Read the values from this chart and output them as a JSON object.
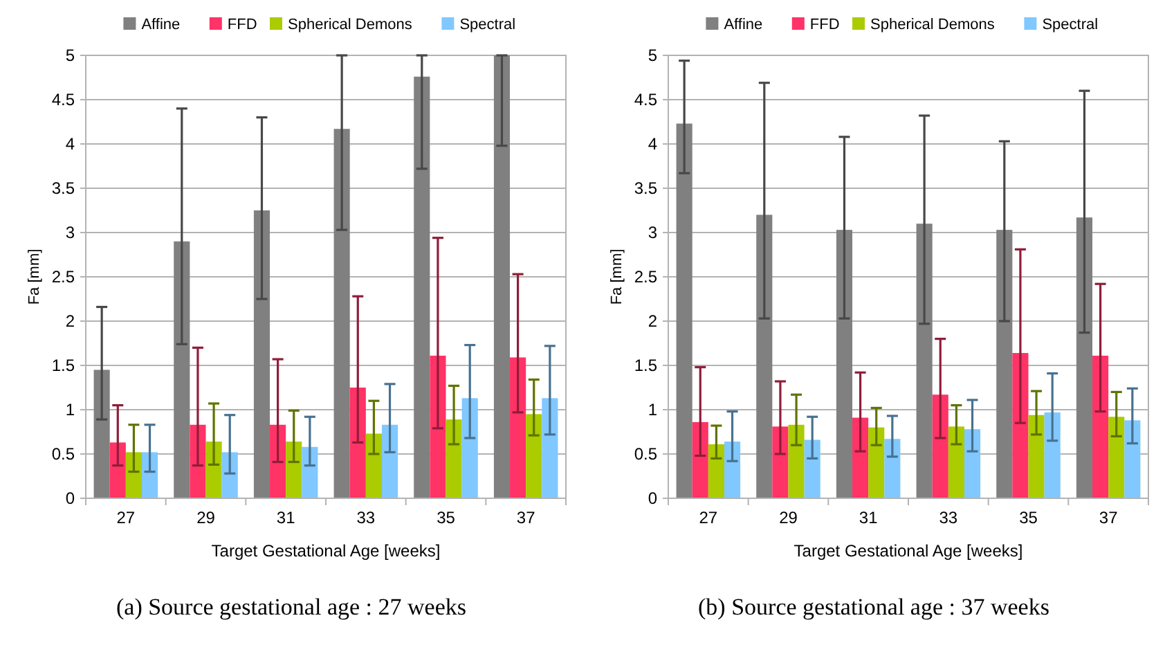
{
  "chart_data": [
    {
      "type": "bar",
      "title": "(a) Source gestational age : 27 weeks",
      "xlabel": "Target Gestational Age [weeks]",
      "ylabel": "Fa [mm]",
      "categories": [
        "27",
        "29",
        "31",
        "33",
        "35",
        "37"
      ],
      "ylim": [
        0,
        5
      ],
      "yticks": [
        0,
        0.5,
        1,
        1.5,
        2,
        2.5,
        3,
        3.5,
        4,
        4.5,
        5
      ],
      "grid": "y",
      "legend": "top",
      "series": [
        {
          "name": "Affine",
          "color": "#808080",
          "values": [
            1.45,
            2.9,
            3.25,
            4.17,
            4.76,
            5
          ],
          "errors": [
            [
              0.89,
              2.16
            ],
            [
              1.74,
              4.4
            ],
            [
              2.25,
              4.3
            ],
            [
              3.03,
              5
            ],
            [
              3.72,
              5
            ],
            [
              3.98,
              5
            ]
          ]
        },
        {
          "name": "FFD",
          "color": "#ff3366",
          "values": [
            0.63,
            0.83,
            0.83,
            1.25,
            1.61,
            1.59
          ],
          "errors": [
            [
              0.37,
              1.05
            ],
            [
              0.37,
              1.7
            ],
            [
              0.41,
              1.57
            ],
            [
              0.63,
              2.28
            ],
            [
              0.79,
              2.94
            ],
            [
              0.97,
              2.53
            ]
          ]
        },
        {
          "name": "Spherical Demons",
          "color": "#aacc00",
          "values": [
            0.52,
            0.64,
            0.64,
            0.73,
            0.89,
            0.95
          ],
          "errors": [
            [
              0.3,
              0.83
            ],
            [
              0.38,
              1.07
            ],
            [
              0.41,
              0.99
            ],
            [
              0.5,
              1.1
            ],
            [
              0.61,
              1.27
            ],
            [
              0.71,
              1.34
            ]
          ]
        },
        {
          "name": "Spectral",
          "color": "#80c8ff",
          "values": [
            0.52,
            0.52,
            0.58,
            0.83,
            1.13,
            1.13
          ],
          "errors": [
            [
              0.3,
              0.83
            ],
            [
              0.28,
              0.94
            ],
            [
              0.37,
              0.92
            ],
            [
              0.52,
              1.29
            ],
            [
              0.68,
              1.73
            ],
            [
              0.72,
              1.72
            ]
          ]
        }
      ]
    },
    {
      "type": "bar",
      "title": "(b) Source gestational age : 37 weeks",
      "xlabel": "Target Gestational Age [weeks]",
      "ylabel": "Fa [mm]",
      "categories": [
        "27",
        "29",
        "31",
        "33",
        "35",
        "37"
      ],
      "ylim": [
        0,
        5
      ],
      "yticks": [
        0,
        0.5,
        1,
        1.5,
        2,
        2.5,
        3,
        3.5,
        4,
        4.5,
        5
      ],
      "grid": "y",
      "legend": "top",
      "series": [
        {
          "name": "Affine",
          "color": "#808080",
          "values": [
            4.23,
            3.2,
            3.03,
            3.1,
            3.03,
            3.17
          ],
          "errors": [
            [
              3.67,
              4.94
            ],
            [
              2.03,
              4.69
            ],
            [
              2.03,
              4.08
            ],
            [
              1.97,
              4.32
            ],
            [
              2,
              4.03
            ],
            [
              1.87,
              4.6
            ]
          ]
        },
        {
          "name": "FFD",
          "color": "#ff3366",
          "values": [
            0.86,
            0.81,
            0.91,
            1.17,
            1.64,
            1.61
          ],
          "errors": [
            [
              0.48,
              1.48
            ],
            [
              0.5,
              1.32
            ],
            [
              0.53,
              1.42
            ],
            [
              0.68,
              1.8
            ],
            [
              0.85,
              2.81
            ],
            [
              0.98,
              2.42
            ]
          ]
        },
        {
          "name": "Spherical Demons",
          "color": "#aacc00",
          "values": [
            0.61,
            0.83,
            0.8,
            0.81,
            0.94,
            0.92
          ],
          "errors": [
            [
              0.45,
              0.82
            ],
            [
              0.6,
              1.17
            ],
            [
              0.6,
              1.02
            ],
            [
              0.61,
              1.05
            ],
            [
              0.72,
              1.21
            ],
            [
              0.7,
              1.2
            ]
          ]
        },
        {
          "name": "Spectral",
          "color": "#80c8ff",
          "values": [
            0.64,
            0.66,
            0.67,
            0.78,
            0.97,
            0.88
          ],
          "errors": [
            [
              0.42,
              0.98
            ],
            [
              0.45,
              0.92
            ],
            [
              0.47,
              0.93
            ],
            [
              0.53,
              1.11
            ],
            [
              0.65,
              1.41
            ],
            [
              0.62,
              1.24
            ]
          ]
        }
      ]
    }
  ]
}
